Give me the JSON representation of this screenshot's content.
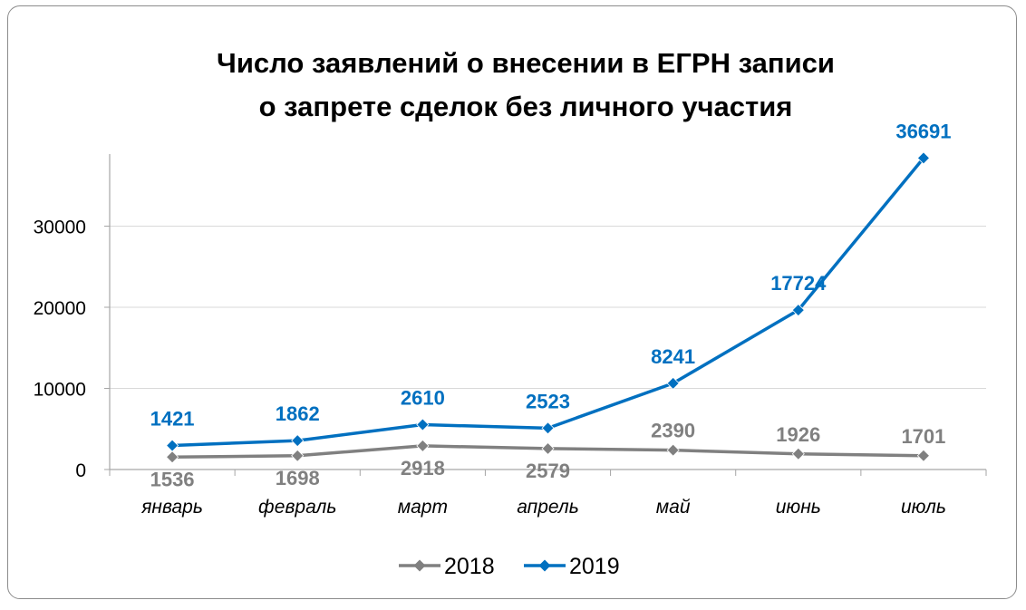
{
  "chart_data": {
    "type": "line",
    "title": "Число заявлений о внесении в ЕГРН записи\nо запрете сделок без личного участия",
    "categories": [
      "январь",
      "февраль",
      "март",
      "апрель",
      "май",
      "июнь",
      "июль"
    ],
    "series": [
      {
        "name": "2018",
        "color": "#808080",
        "values": [
          1536,
          1698,
          2918,
          2579,
          2390,
          1926,
          1701
        ],
        "plot_values": [
          1536,
          1698,
          2918,
          2579,
          2390,
          1926,
          1701
        ],
        "labels": [
          "1536",
          "1698",
          "2918",
          "2579",
          "2390",
          "1926",
          "1701"
        ]
      },
      {
        "name": "2019",
        "color": "#0070C0",
        "values": [
          1421,
          1862,
          2610,
          2523,
          8241,
          17724,
          36691
        ],
        "plot_values": [
          2957,
          3560,
          5528,
          5102,
          10631,
          19650,
          38392
        ],
        "labels": [
          "1421",
          "1862",
          "2610",
          "2523",
          "8241",
          "17724",
          "36691"
        ]
      }
    ],
    "yticks": [
      "0",
      "10000",
      "20000",
      "30000"
    ],
    "ylim": [
      0,
      40000
    ],
    "grid": true,
    "legend_position": "bottom",
    "legend": [
      "2018",
      "2019"
    ],
    "marker": "diamond-icon"
  }
}
